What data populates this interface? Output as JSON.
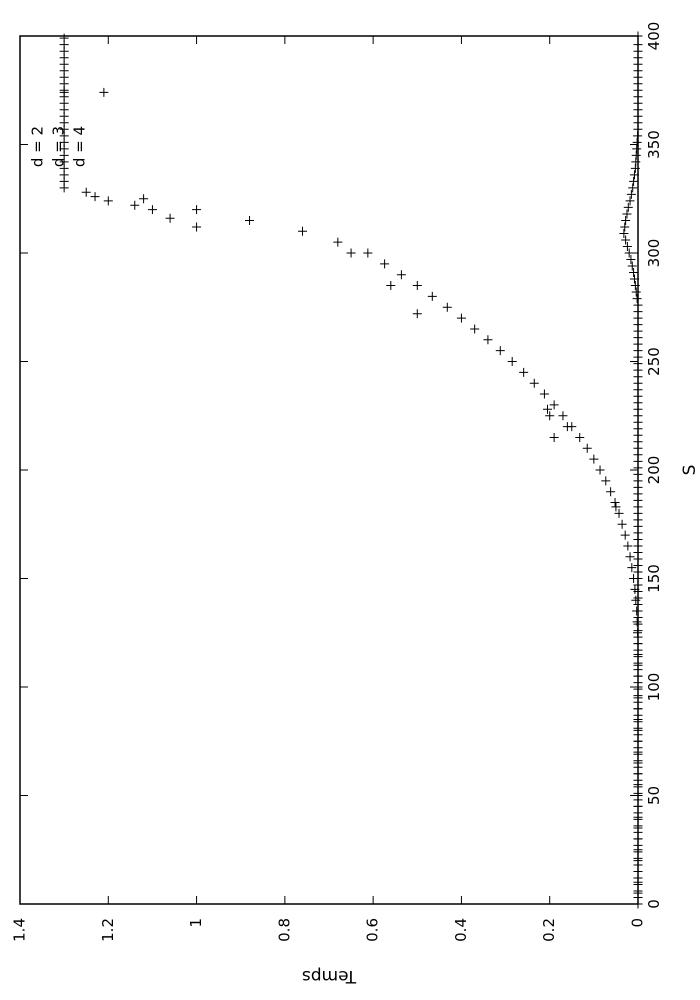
{
  "chart_data": {
    "type": "scatter",
    "orientation": "rotated-90-clockwise",
    "xlabel": "S",
    "ylabel": "Temps",
    "xlim": [
      0,
      400
    ],
    "ylim": [
      0,
      1.4
    ],
    "x_ticks": [
      "0",
      "50",
      "100",
      "150",
      "200",
      "250",
      "300",
      "350",
      "400"
    ],
    "y_ticks": [
      "0",
      "0.2",
      "0.4",
      "0.6",
      "0.8",
      "1",
      "1.2",
      "1.4"
    ],
    "grid": false,
    "legend_position": "top-right",
    "marker": "plus",
    "series": [
      {
        "name": "d = 2"
      },
      {
        "name": "d = 3"
      },
      {
        "name": "d = 4"
      }
    ],
    "points": {
      "d2": [
        [
          0,
          0.0
        ],
        [
          5,
          0.0
        ],
        [
          10,
          0.0
        ],
        [
          15,
          0.0
        ],
        [
          20,
          0.0
        ],
        [
          25,
          0.0
        ],
        [
          30,
          0.0
        ],
        [
          35,
          0.0
        ],
        [
          40,
          0.0
        ],
        [
          45,
          0.0
        ],
        [
          50,
          0.0
        ],
        [
          55,
          0.0
        ],
        [
          60,
          0.0
        ],
        [
          65,
          0.0
        ],
        [
          70,
          0.0
        ],
        [
          75,
          0.0
        ],
        [
          80,
          0.0
        ],
        [
          85,
          0.0
        ],
        [
          90,
          0.0
        ],
        [
          95,
          0.0
        ],
        [
          100,
          0.0
        ],
        [
          105,
          0.0
        ],
        [
          110,
          0.0
        ],
        [
          115,
          0.0
        ],
        [
          120,
          0.0
        ],
        [
          125,
          0.001
        ],
        [
          130,
          0.002
        ],
        [
          135,
          0.003
        ],
        [
          140,
          0.005
        ],
        [
          145,
          0.007
        ],
        [
          150,
          0.01
        ],
        [
          155,
          0.014
        ],
        [
          160,
          0.018
        ],
        [
          165,
          0.023
        ],
        [
          170,
          0.029
        ],
        [
          175,
          0.036
        ],
        [
          180,
          0.043
        ],
        [
          185,
          0.052
        ],
        [
          190,
          0.062
        ],
        [
          195,
          0.073
        ],
        [
          200,
          0.086
        ],
        [
          205,
          0.1
        ],
        [
          210,
          0.115
        ],
        [
          215,
          0.132
        ],
        [
          220,
          0.15
        ],
        [
          225,
          0.17
        ],
        [
          230,
          0.19
        ],
        [
          235,
          0.212
        ],
        [
          240,
          0.235
        ],
        [
          245,
          0.259
        ],
        [
          250,
          0.285
        ],
        [
          255,
          0.312
        ],
        [
          260,
          0.34
        ],
        [
          265,
          0.37
        ],
        [
          270,
          0.4
        ],
        [
          275,
          0.432
        ],
        [
          280,
          0.466
        ],
        [
          285,
          0.5
        ],
        [
          290,
          0.536
        ],
        [
          295,
          0.574
        ],
        [
          300,
          0.612
        ],
        [
          305,
          0.68
        ],
        [
          310,
          0.76
        ],
        [
          315,
          0.88
        ],
        [
          320,
          1.0
        ],
        [
          325,
          1.12
        ],
        [
          328,
          1.25
        ]
      ],
      "d3": [
        [
          183,
          0.05
        ],
        [
          215,
          0.19
        ],
        [
          220,
          0.16
        ],
        [
          225,
          0.2
        ],
        [
          228,
          0.205
        ],
        [
          272,
          0.5
        ],
        [
          285,
          0.56
        ],
        [
          300,
          0.65
        ],
        [
          312,
          1.0
        ],
        [
          316,
          1.06
        ],
        [
          320,
          1.1
        ],
        [
          322,
          1.14
        ],
        [
          324,
          1.2
        ],
        [
          326,
          1.23
        ],
        [
          374,
          1.3
        ],
        [
          374,
          1.21
        ]
      ],
      "d4": [
        [
          0,
          0.0
        ],
        [
          3,
          0.0
        ],
        [
          6,
          0.0
        ],
        [
          9,
          0.0
        ],
        [
          12,
          0.0
        ],
        [
          15,
          0.0
        ],
        [
          18,
          0.0
        ],
        [
          21,
          0.0
        ],
        [
          24,
          0.0
        ],
        [
          27,
          0.0
        ],
        [
          30,
          0.0
        ],
        [
          33,
          0.0
        ],
        [
          36,
          0.0
        ],
        [
          39,
          0.0
        ],
        [
          42,
          0.0
        ],
        [
          45,
          0.0
        ],
        [
          48,
          0.0
        ],
        [
          51,
          0.0
        ],
        [
          54,
          0.0
        ],
        [
          57,
          0.0
        ],
        [
          60,
          0.0
        ],
        [
          63,
          0.0
        ],
        [
          66,
          0.0
        ],
        [
          69,
          0.0
        ],
        [
          72,
          0.0
        ],
        [
          75,
          0.0
        ],
        [
          78,
          0.0
        ],
        [
          81,
          0.0
        ],
        [
          84,
          0.0
        ],
        [
          87,
          0.0
        ],
        [
          90,
          0.0
        ],
        [
          93,
          0.0
        ],
        [
          96,
          0.0
        ],
        [
          99,
          0.0
        ],
        [
          102,
          0.0
        ],
        [
          105,
          0.0
        ],
        [
          108,
          0.0
        ],
        [
          111,
          0.0
        ],
        [
          114,
          0.0
        ],
        [
          117,
          0.0
        ],
        [
          120,
          0.0
        ],
        [
          123,
          0.0
        ],
        [
          126,
          0.0
        ],
        [
          129,
          0.0
        ],
        [
          132,
          0.0
        ],
        [
          135,
          0.0
        ],
        [
          138,
          0.0
        ],
        [
          141,
          0.0
        ],
        [
          144,
          0.0
        ],
        [
          147,
          0.0
        ],
        [
          150,
          0.0
        ],
        [
          153,
          0.0
        ],
        [
          156,
          0.0
        ],
        [
          159,
          0.0
        ],
        [
          162,
          0.0
        ],
        [
          165,
          0.0
        ],
        [
          168,
          0.0
        ],
        [
          171,
          0.0
        ],
        [
          174,
          0.0
        ],
        [
          177,
          0.0
        ],
        [
          180,
          0.0
        ],
        [
          183,
          0.0
        ],
        [
          186,
          0.0
        ],
        [
          189,
          0.0
        ],
        [
          192,
          0.0
        ],
        [
          195,
          0.0
        ],
        [
          198,
          0.0
        ],
        [
          201,
          0.0
        ],
        [
          204,
          0.0
        ],
        [
          207,
          0.0
        ],
        [
          210,
          0.0
        ],
        [
          213,
          0.0
        ],
        [
          216,
          0.0
        ],
        [
          219,
          0.0
        ],
        [
          222,
          0.0
        ],
        [
          225,
          0.0
        ],
        [
          228,
          0.0
        ],
        [
          231,
          0.0
        ],
        [
          234,
          0.0
        ],
        [
          237,
          0.0
        ],
        [
          240,
          0.0
        ],
        [
          243,
          0.0
        ],
        [
          246,
          0.0
        ],
        [
          249,
          0.0
        ],
        [
          252,
          0.0
        ],
        [
          255,
          0.0
        ],
        [
          258,
          0.0
        ],
        [
          261,
          0.0
        ],
        [
          264,
          0.0
        ],
        [
          267,
          0.0
        ],
        [
          270,
          0.0
        ],
        [
          273,
          0.0
        ],
        [
          276,
          0.0
        ],
        [
          279,
          0.002
        ],
        [
          282,
          0.004
        ],
        [
          285,
          0.006
        ],
        [
          288,
          0.008
        ],
        [
          291,
          0.01
        ],
        [
          294,
          0.013
        ],
        [
          297,
          0.016
        ],
        [
          300,
          0.02
        ],
        [
          303,
          0.024
        ],
        [
          306,
          0.028
        ],
        [
          309,
          0.032
        ],
        [
          312,
          0.03
        ],
        [
          315,
          0.028
        ],
        [
          318,
          0.025
        ],
        [
          321,
          0.022
        ],
        [
          324,
          0.018
        ],
        [
          327,
          0.015
        ],
        [
          330,
          0.012
        ],
        [
          333,
          0.01
        ],
        [
          336,
          0.008
        ],
        [
          339,
          0.006
        ],
        [
          342,
          0.005
        ],
        [
          345,
          0.004
        ],
        [
          348,
          0.003
        ],
        [
          351,
          0.002
        ],
        [
          354,
          0.001
        ],
        [
          357,
          0.0
        ],
        [
          360,
          0.0
        ],
        [
          363,
          0.0
        ],
        [
          366,
          0.0
        ],
        [
          369,
          0.0
        ],
        [
          372,
          0.0
        ],
        [
          375,
          0.0
        ],
        [
          378,
          0.0
        ],
        [
          381,
          0.0
        ],
        [
          384,
          0.0
        ],
        [
          387,
          0.0
        ],
        [
          390,
          0.0
        ],
        [
          393,
          0.0
        ],
        [
          396,
          0.0
        ],
        [
          400,
          0.0
        ]
      ],
      "d4_legend_column": [
        [
          330,
          1.3
        ],
        [
          333,
          1.3
        ],
        [
          336,
          1.3
        ],
        [
          339,
          1.3
        ],
        [
          342,
          1.3
        ],
        [
          345,
          1.3
        ],
        [
          348,
          1.3
        ],
        [
          351,
          1.3
        ],
        [
          354,
          1.3
        ],
        [
          357,
          1.3
        ],
        [
          360,
          1.3
        ],
        [
          363,
          1.3
        ],
        [
          366,
          1.3
        ],
        [
          369,
          1.3
        ],
        [
          372,
          1.3
        ],
        [
          375,
          1.3
        ],
        [
          378,
          1.3
        ],
        [
          381,
          1.3
        ],
        [
          384,
          1.3
        ],
        [
          387,
          1.3
        ],
        [
          390,
          1.3
        ],
        [
          393,
          1.3
        ],
        [
          396,
          1.3
        ],
        [
          399,
          1.3
        ]
      ]
    }
  }
}
